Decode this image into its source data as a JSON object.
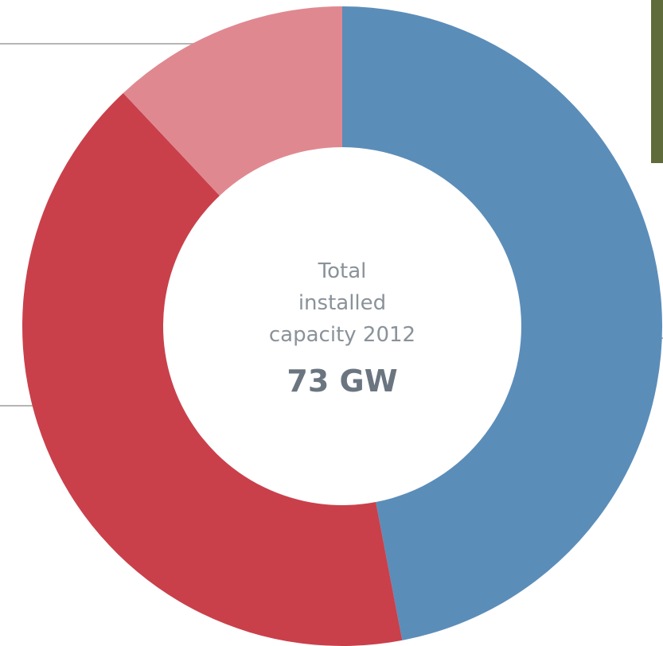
{
  "chart_data": {
    "type": "donut",
    "center_label": [
      "Total",
      "installed",
      "capacity 2012"
    ],
    "center_value": "73 GW",
    "values": [
      47,
      41,
      12
    ],
    "colors": [
      "#5b8db9",
      "#c9404b",
      "#e08890"
    ]
  }
}
